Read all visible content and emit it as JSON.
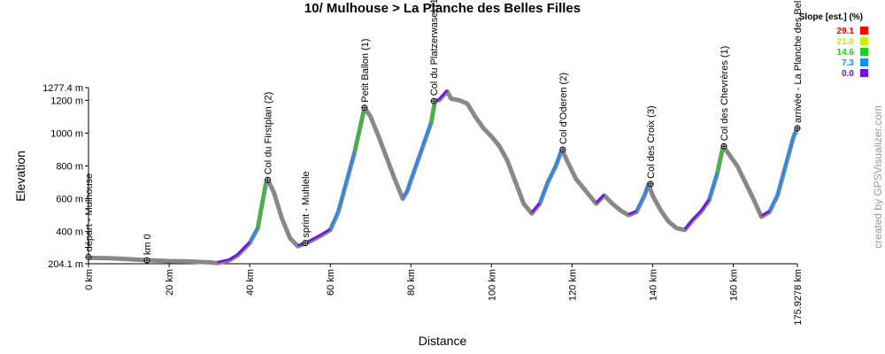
{
  "chart_data": {
    "type": "line",
    "title": "10/ Mulhouse > La Planche des Belles Filles",
    "x_label": "Distance",
    "y_label": "Elevation",
    "credit": "created by GPSVisualizer.com",
    "xlim": [
      0,
      175.9278
    ],
    "ylim": [
      204.1,
      1277.4
    ],
    "xticks": [
      {
        "value": 0,
        "label": "0 km"
      },
      {
        "value": 20,
        "label": "20 km"
      },
      {
        "value": 40,
        "label": "40 km"
      },
      {
        "value": 60,
        "label": "60 km"
      },
      {
        "value": 80,
        "label": "80 km"
      },
      {
        "value": 100,
        "label": "100 km"
      },
      {
        "value": 120,
        "label": "120 km"
      },
      {
        "value": 140,
        "label": "140 km"
      },
      {
        "value": 160,
        "label": "160 km"
      },
      {
        "value": 175.9278,
        "label": "175.9278 km"
      }
    ],
    "yticks": [
      {
        "value": 204.1,
        "label": "204.1 m"
      },
      {
        "value": 400,
        "label": "400 m"
      },
      {
        "value": 600,
        "label": "600 m"
      },
      {
        "value": 800,
        "label": "800 m"
      },
      {
        "value": 1000,
        "label": "1000 m"
      },
      {
        "value": 1200,
        "label": "1200 m"
      },
      {
        "value": 1277.4,
        "label": "1277.4 m"
      }
    ],
    "x": [
      0,
      5,
      10,
      15,
      20,
      25,
      30,
      32,
      35,
      37,
      40,
      42,
      44,
      44.5,
      46,
      48,
      50,
      52,
      55,
      58,
      60,
      62,
      64,
      66,
      68.5,
      70,
      72,
      74,
      76,
      78,
      79,
      81,
      83,
      85,
      86,
      87,
      89,
      90,
      92,
      94,
      96,
      98,
      100,
      102,
      104,
      106,
      108,
      110,
      112,
      114,
      116,
      117.5,
      119,
      121,
      123,
      125,
      126,
      128,
      130,
      132,
      134,
      136,
      138,
      139,
      140,
      142,
      144,
      146,
      148,
      150,
      152,
      154,
      156,
      157.5,
      159,
      161,
      163,
      165,
      167,
      169,
      171,
      173,
      175,
      175.9278
    ],
    "series": [
      {
        "color": "#888888",
        "values": [
          240,
          238,
          232,
          225,
          220,
          218,
          212,
          208,
          225,
          255,
          330,
          420,
          690,
          715,
          640,
          480,
          360,
          310,
          340,
          380,
          410,
          520,
          700,
          880,
          1155,
          1100,
          980,
          850,
          720,
          600,
          640,
          780,
          920,
          1060,
          1195,
          1200,
          1255,
          1210,
          1200,
          1180,
          1100,
          1030,
          980,
          920,
          830,
          700,
          570,
          510,
          570,
          700,
          800,
          900,
          820,
          720,
          660,
          600,
          570,
          620,
          570,
          530,
          500,
          520,
          620,
          690,
          620,
          530,
          460,
          420,
          410,
          470,
          520,
          590,
          750,
          920,
          870,
          800,
          700,
          600,
          490,
          520,
          620,
          800,
          980,
          1030
        ]
      }
    ],
    "slope_legend": {
      "title": "Slope [est.] (%)",
      "items": [
        {
          "value": 29.1,
          "color": "#ff0000"
        },
        {
          "value": 21.8,
          "color": "#ccee00"
        },
        {
          "value": 14.6,
          "color": "#22cc22"
        },
        {
          "value": 7.3,
          "color": "#1a8cff"
        },
        {
          "value": {
            "value": 0,
            "label": "0.0"
          },
          "color": "#7010f0"
        }
      ]
    },
    "waypoints": [
      {
        "label": "départ - Mulhouse",
        "x": 0,
        "y": 245
      },
      {
        "label": "km 0",
        "x": 14.5,
        "y": 225
      },
      {
        "label": "Col du Firstplan (2)",
        "x": 44.5,
        "y": 715
      },
      {
        "label": "sprint - Muhlele",
        "x": 53.8,
        "y": 330
      },
      {
        "label": "Petit Ballon (1)",
        "x": 68.5,
        "y": 1155
      },
      {
        "label": "Col du Platzerwasel (1)",
        "x": 85.7,
        "y": 1195
      },
      {
        "label": "Col d'Oderen (2)",
        "x": 117.7,
        "y": 900
      },
      {
        "label": "Col des Croix (3)",
        "x": 139.5,
        "y": 690
      },
      {
        "label": "Col des Chevrères (1)",
        "x": 157.7,
        "y": 920
      },
      {
        "label": "arrivée - La Planche des Belles Filles",
        "x": 175.9278,
        "y": 1030
      }
    ]
  }
}
